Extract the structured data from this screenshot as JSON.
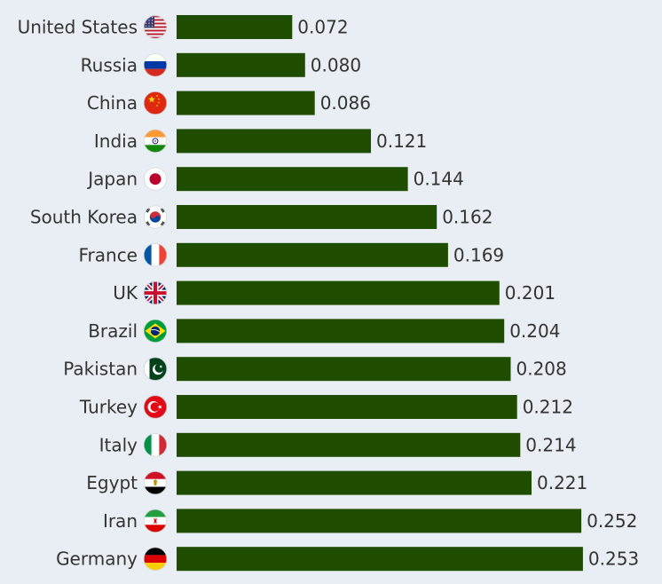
{
  "colors": {
    "background": "#e9eef4",
    "bar": "#1f4d00",
    "text": "#333333"
  },
  "chart_data": {
    "type": "bar",
    "orientation": "horizontal",
    "categories": [
      "United States",
      "Russia",
      "China",
      "India",
      "Japan",
      "South Korea",
      "France",
      "UK",
      "Brazil",
      "Pakistan",
      "Turkey",
      "Italy",
      "Egypt",
      "Iran",
      "Germany"
    ],
    "values": [
      0.072,
      0.08,
      0.086,
      0.121,
      0.144,
      0.162,
      0.169,
      0.201,
      0.204,
      0.208,
      0.212,
      0.214,
      0.221,
      0.252,
      0.253
    ],
    "data_labels": [
      "0.072",
      "0.080",
      "0.086",
      "0.121",
      "0.144",
      "0.162",
      "0.169",
      "0.201",
      "0.204",
      "0.208",
      "0.212",
      "0.214",
      "0.221",
      "0.252",
      "0.253"
    ],
    "flag_icons": [
      "us-flag-icon",
      "russia-flag-icon",
      "china-flag-icon",
      "india-flag-icon",
      "japan-flag-icon",
      "south-korea-flag-icon",
      "france-flag-icon",
      "uk-flag-icon",
      "brazil-flag-icon",
      "pakistan-flag-icon",
      "turkey-flag-icon",
      "italy-flag-icon",
      "egypt-flag-icon",
      "iran-flag-icon",
      "germany-flag-icon"
    ],
    "value_axis_visible": false,
    "grid": false,
    "legend": "none"
  }
}
